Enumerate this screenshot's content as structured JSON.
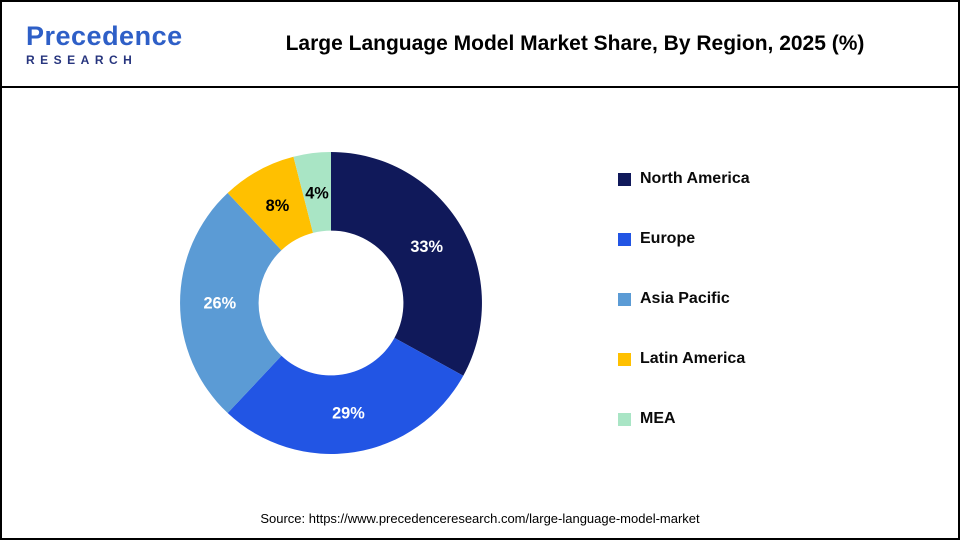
{
  "logo": {
    "name": "Precedence",
    "sub": "RESEARCH"
  },
  "header": {
    "title": "Large Language Model Market Share, By Region, 2025 (%)"
  },
  "chart_data": {
    "type": "pie",
    "subtype": "donut",
    "title": "Large Language Model Market Share, By Region, 2025 (%)",
    "unit": "%",
    "start_angle_deg": 0,
    "direction": "clockwise",
    "legend_position": "right",
    "inner_radius_ratio": 0.48,
    "segments": [
      {
        "label": "North America",
        "value": 33,
        "color": "#10195A",
        "value_label_color": "#FFFFFF"
      },
      {
        "label": "Europe",
        "value": 29,
        "color": "#2255E4",
        "value_label_color": "#FFFFFF"
      },
      {
        "label": "Asia Pacific",
        "value": 26,
        "color": "#5B9BD5",
        "value_label_color": "#FFFFFF"
      },
      {
        "label": "Latin America",
        "value": 8,
        "color": "#FFC000",
        "value_label_color": "#000000"
      },
      {
        "label": "MEA",
        "value": 4,
        "color": "#A9E5C5",
        "value_label_color": "#000000"
      }
    ]
  },
  "footer": {
    "source": "Source: https://www.precedenceresearch.com/large-language-model-market"
  }
}
